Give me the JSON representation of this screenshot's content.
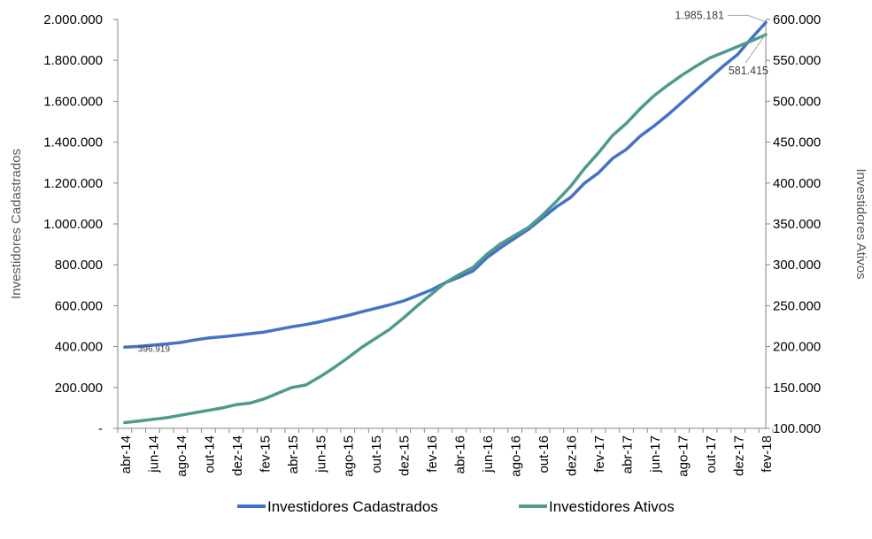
{
  "chart_data": {
    "type": "line",
    "categories": [
      "abr-14",
      "jun-14",
      "ago-14",
      "out-14",
      "dez-14",
      "fev-15",
      "abr-15",
      "jun-15",
      "ago-15",
      "out-15",
      "dez-15",
      "fev-16",
      "abr-16",
      "jun-16",
      "ago-16",
      "out-16",
      "dez-16",
      "fev-17",
      "abr-17",
      "jun-17",
      "ago-17",
      "out-17",
      "dez-17",
      "fev-18"
    ],
    "x": [
      "abr-14",
      "mai-14",
      "jun-14",
      "jul-14",
      "ago-14",
      "set-14",
      "out-14",
      "nov-14",
      "dez-14",
      "jan-15",
      "fev-15",
      "mar-15",
      "abr-15",
      "mai-15",
      "jun-15",
      "jul-15",
      "ago-15",
      "set-15",
      "out-15",
      "nov-15",
      "dez-15",
      "jan-16",
      "fev-16",
      "mar-16",
      "abr-16",
      "mai-16",
      "jun-16",
      "jul-16",
      "ago-16",
      "set-16",
      "out-16",
      "nov-16",
      "dez-16",
      "jan-17",
      "fev-17",
      "mar-17",
      "abr-17",
      "mai-17",
      "jun-17",
      "jul-17",
      "ago-17",
      "set-17",
      "out-17",
      "nov-17",
      "dez-17",
      "jan-18",
      "fev-18"
    ],
    "series": [
      {
        "name": "Investidores Cadastrados",
        "axis": "left",
        "color": "#4472C4",
        "values": [
          396919,
          401000,
          407000,
          413000,
          420000,
          432000,
          442000,
          448000,
          455000,
          463000,
          471000,
          484000,
          497000,
          508000,
          521000,
          537000,
          552000,
          570000,
          587000,
          604000,
          623000,
          650000,
          677000,
          712000,
          740000,
          770000,
          835000,
          885000,
          930000,
          975000,
          1030000,
          1085000,
          1130000,
          1200000,
          1250000,
          1320000,
          1365000,
          1430000,
          1480000,
          1535000,
          1595000,
          1655000,
          1715000,
          1775000,
          1830000,
          1910000,
          1985181
        ]
      },
      {
        "name": "Investidores Ativos",
        "axis": "right",
        "color": "#4E9A8C",
        "values": [
          107000,
          109000,
          111000,
          113000,
          116000,
          119000,
          122000,
          125000,
          129000,
          131000,
          136000,
          143000,
          150000,
          153000,
          163000,
          174000,
          186000,
          199000,
          210000,
          221000,
          235000,
          250000,
          264000,
          278000,
          288000,
          297000,
          313000,
          326000,
          336000,
          346000,
          361000,
          378000,
          396000,
          418000,
          437000,
          458000,
          473000,
          491000,
          507000,
          520000,
          532000,
          543000,
          553000,
          560000,
          567000,
          574000,
          581415
        ]
      }
    ],
    "data_labels": {
      "cadastrados_start": "396.919",
      "cadastrados_end": "1.985.181",
      "ativos_end": "581.415"
    },
    "y_left": {
      "label": "Investidores Cadastrados",
      "ylim": [
        0,
        2000000
      ],
      "ticks": [
        0,
        200000,
        400000,
        600000,
        800000,
        1000000,
        1200000,
        1400000,
        1600000,
        1800000,
        2000000
      ],
      "tick_labels": [
        "-",
        "200.000",
        "400.000",
        "600.000",
        "800.000",
        "1.000.000",
        "1.200.000",
        "1.400.000",
        "1.600.000",
        "1.800.000",
        "2.000.000"
      ]
    },
    "y_right": {
      "label": "Investidores Ativos",
      "ylim": [
        100000,
        600000
      ],
      "ticks": [
        100000,
        150000,
        200000,
        250000,
        300000,
        350000,
        400000,
        450000,
        500000,
        550000,
        600000
      ],
      "tick_labels": [
        "100.000",
        "150.000",
        "200.000",
        "250.000",
        "300.000",
        "350.000",
        "400.000",
        "450.000",
        "500.000",
        "550.000",
        "600.000"
      ]
    },
    "grid": false,
    "legend": "bottom"
  }
}
